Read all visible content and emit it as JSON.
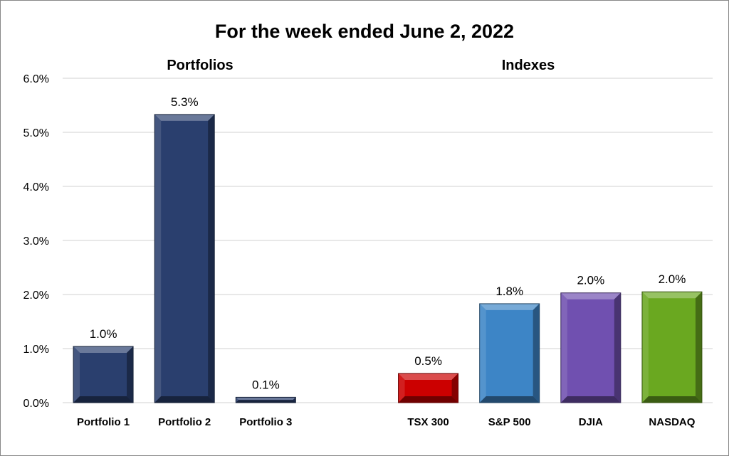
{
  "chart_data": {
    "type": "bar",
    "title": "For the week ended June 2, 2022",
    "group_labels": [
      "Portfolios",
      "Indexes"
    ],
    "categories": [
      "Portfolio 1",
      "Portfolio 2",
      "Portfolio 3",
      "",
      "TSX 300",
      "S&P 500",
      "DJIA",
      "NASDAQ"
    ],
    "values": [
      1.04,
      5.33,
      0.1,
      null,
      0.54,
      1.83,
      2.03,
      2.05
    ],
    "data_labels": [
      "1.0%",
      "5.3%",
      "0.1%",
      "",
      "0.5%",
      "1.8%",
      "2.0%",
      "2.0%"
    ],
    "colors": [
      "#2a3f6e",
      "#2a3f6e",
      "#2a3f6e",
      "",
      "#cc0000",
      "#3d85c6",
      "#7050b0",
      "#6aa820"
    ],
    "ylim": [
      0,
      6
    ],
    "yticks": [
      "0.0%",
      "1.0%",
      "2.0%",
      "3.0%",
      "4.0%",
      "5.0%",
      "6.0%"
    ],
    "xlabel": "",
    "ylabel": "",
    "grid": true,
    "legend": "none"
  }
}
